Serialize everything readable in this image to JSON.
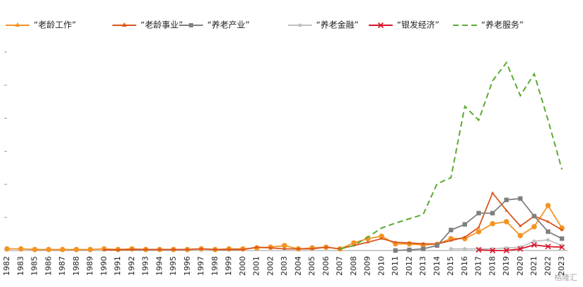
{
  "chart_data": {
    "type": "line",
    "categories": [
      "1982",
      "1983",
      "1985",
      "1986",
      "1987",
      "1988",
      "1989",
      "1990",
      "1991",
      "1992",
      "1993",
      "1994",
      "1995",
      "1996",
      "1997",
      "1998",
      "1999",
      "2000",
      "2001",
      "2002",
      "2003",
      "2004",
      "2005",
      "2006",
      "2007",
      "2008",
      "2009",
      "2010",
      "2011",
      "2012",
      "2013",
      "2014",
      "2015",
      "2016",
      "2017",
      "2018",
      "2019",
      "2020",
      "2021",
      "2022",
      "2023"
    ],
    "series": [
      {
        "name": "“老龄工作”",
        "color": "#f39423",
        "marker": "circle",
        "dash": false,
        "values": [
          0.05,
          0.05,
          0.03,
          0.03,
          0.03,
          0.03,
          0.03,
          0.05,
          0.03,
          0.05,
          0.03,
          0.03,
          0.03,
          0.03,
          0.05,
          0.03,
          0.05,
          0.05,
          0.08,
          0.1,
          0.15,
          0.05,
          0.08,
          0.1,
          0.05,
          0.23,
          0.36,
          0.43,
          0.2,
          0.2,
          0.17,
          0.19,
          0.36,
          0.36,
          0.57,
          0.81,
          0.87,
          0.45,
          0.72,
          1.36,
          0.68
        ]
      },
      {
        "name": "“老龄事业”",
        "color": "#d9561b",
        "marker": "triangle",
        "dash": false,
        "values": [
          null,
          null,
          null,
          null,
          null,
          null,
          null,
          0.02,
          0.02,
          0.03,
          0.03,
          0.03,
          0.03,
          0.03,
          0.05,
          0.03,
          0.03,
          0.03,
          0.1,
          0.08,
          0.05,
          0.05,
          0.05,
          0.1,
          0.05,
          0.15,
          0.25,
          0.36,
          0.25,
          0.23,
          0.2,
          0.2,
          0.3,
          0.4,
          0.7,
          1.74,
          1.21,
          0.74,
          1.04,
          0.87,
          0.62
        ]
      },
      {
        "name": "“养老产业”",
        "color": "#7f7f7f",
        "marker": "square",
        "dash": false,
        "values": [
          null,
          null,
          null,
          null,
          null,
          null,
          null,
          null,
          null,
          null,
          null,
          null,
          null,
          null,
          null,
          null,
          null,
          null,
          null,
          null,
          null,
          null,
          null,
          null,
          null,
          null,
          null,
          null,
          0,
          0.02,
          0.05,
          0.15,
          0.62,
          0.79,
          1.13,
          1.13,
          1.53,
          1.57,
          1.04,
          0.57,
          0.36
        ]
      },
      {
        "name": "“养老金融”",
        "color": "#bfbfbf",
        "marker": "dot",
        "dash": false,
        "values": [
          null,
          null,
          null,
          null,
          null,
          null,
          null,
          null,
          null,
          null,
          null,
          null,
          null,
          null,
          null,
          null,
          null,
          null,
          null,
          null,
          null,
          null,
          null,
          null,
          null,
          null,
          null,
          null,
          null,
          null,
          null,
          null,
          0.05,
          0.05,
          0.05,
          0.05,
          0.08,
          0.1,
          0.28,
          0.32,
          0.15
        ]
      },
      {
        "name": "“银发经济”",
        "color": "#d7142a",
        "marker": "x",
        "dash": false,
        "values": [
          null,
          null,
          null,
          null,
          null,
          null,
          null,
          null,
          null,
          null,
          null,
          null,
          null,
          null,
          null,
          null,
          null,
          null,
          null,
          null,
          null,
          null,
          null,
          null,
          null,
          null,
          null,
          null,
          null,
          null,
          null,
          null,
          null,
          null,
          0.02,
          0,
          0,
          0.05,
          0.17,
          0.12,
          0.1
        ]
      },
      {
        "name": "“养老服务”",
        "color": "#5aaa32",
        "marker": "none",
        "dash": true,
        "values": [
          null,
          null,
          null,
          null,
          null,
          null,
          null,
          null,
          null,
          null,
          null,
          null,
          null,
          null,
          null,
          null,
          null,
          null,
          null,
          null,
          null,
          null,
          null,
          null,
          0.05,
          0.15,
          0.4,
          0.68,
          0.83,
          0.96,
          1.09,
          2.02,
          2.2,
          4.36,
          3.94,
          5.13,
          5.68,
          4.68,
          5.34,
          3.94,
          2.45
        ]
      }
    ],
    "ylim": [
      0,
      6.3
    ],
    "yticks": [
      0,
      1,
      2,
      3,
      4,
      5,
      6
    ],
    "grid": false,
    "legend": "top",
    "watermark": "格隆汇"
  }
}
